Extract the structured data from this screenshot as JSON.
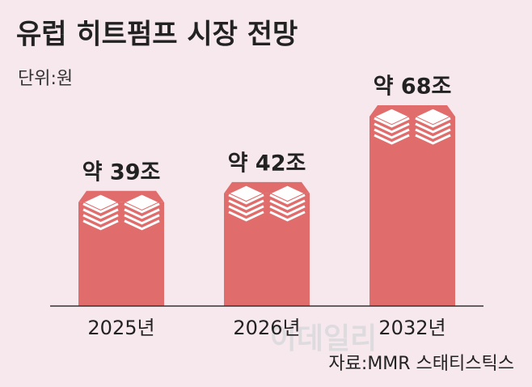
{
  "chart_data": {
    "type": "bar",
    "title": "유럽 히트펌프 시장 전망",
    "subtitle": "단위:원",
    "source": "자료:MMR 스태티스틱스",
    "watermark": "이데일리",
    "categories": [
      "2025년",
      "2026년",
      "2032년"
    ],
    "values": [
      39,
      42,
      68
    ],
    "value_labels": [
      "약 39조",
      "약 42조",
      "약 68조"
    ],
    "color": "#e06c6c"
  }
}
